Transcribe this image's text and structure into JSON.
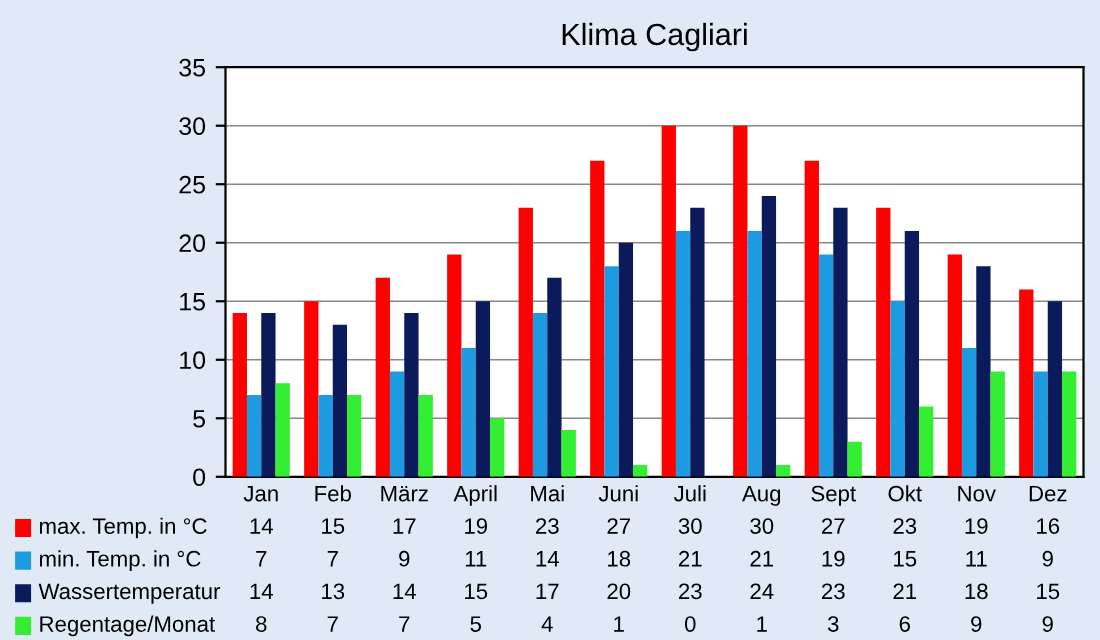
{
  "chart_data": {
    "type": "bar",
    "title": "Klima Cagliari",
    "categories": [
      "Jan",
      "Feb",
      "März",
      "April",
      "Mai",
      "Juni",
      "Juli",
      "Aug",
      "Sept",
      "Okt",
      "Nov",
      "Dez"
    ],
    "series": [
      {
        "name": "max. Temp. in °C",
        "color": "#ff0000",
        "values": [
          14,
          15,
          17,
          19,
          23,
          27,
          30,
          30,
          27,
          23,
          19,
          16
        ]
      },
      {
        "name": "min. Temp. in °C",
        "color": "#1e9be0",
        "values": [
          7,
          7,
          9,
          11,
          14,
          18,
          21,
          21,
          19,
          15,
          11,
          9
        ]
      },
      {
        "name": "Wassertemperatur",
        "color": "#0a1a5a",
        "values": [
          14,
          13,
          14,
          15,
          17,
          20,
          23,
          24,
          23,
          21,
          18,
          15
        ]
      },
      {
        "name": "Regentage/Monat",
        "color": "#33ee33",
        "values": [
          8,
          7,
          7,
          5,
          4,
          1,
          0,
          1,
          3,
          6,
          9,
          9
        ]
      }
    ],
    "ylim": [
      0,
      35
    ],
    "yticks": [
      0,
      5,
      10,
      15,
      20,
      25,
      30,
      35
    ],
    "grid": "y",
    "data_labels": true,
    "legend": "bottom"
  }
}
